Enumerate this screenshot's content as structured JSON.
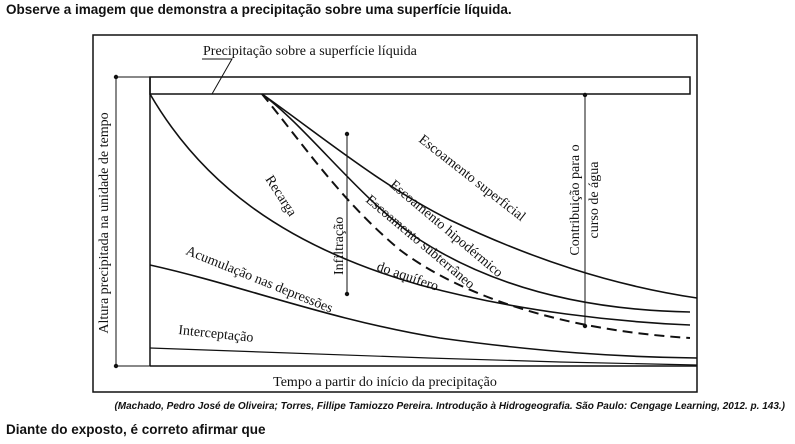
{
  "question_intro": "Observe a imagem que demonstra a precipitação sobre uma superfície líquida.",
  "citation": "(Machado, Pedro José de Oliveira; Torres, Fillipe Tamiozzo Pereira. Introdução à Hidrogeografia. São Paulo: Cengage Learning, 2012. p. 143.)",
  "question_prompt": "Diante do exposto, é correto afirmar que",
  "diagram": {
    "top_label": "Precipitação sobre a superfície líquida",
    "y_axis_label": "Altura precipitada na unidade de tempo",
    "x_axis_label": "Tempo a partir do início da precipitação",
    "right_label_line1": "Contribuição para o",
    "right_label_line2": "curso de água",
    "labels": {
      "recarga": "Recarga",
      "infiltracao": "Infiltração",
      "escoamento_superficial": "Escoamento superficial",
      "escoamento_hipodermico": "Escoamento hipodérmico",
      "escoamento_subterraneo": "Escoamento subterrâneo",
      "do_aquifero": "do aquífero",
      "acumulacao": "Acumulação nas depressões",
      "interceptacao": "Interceptação"
    }
  }
}
